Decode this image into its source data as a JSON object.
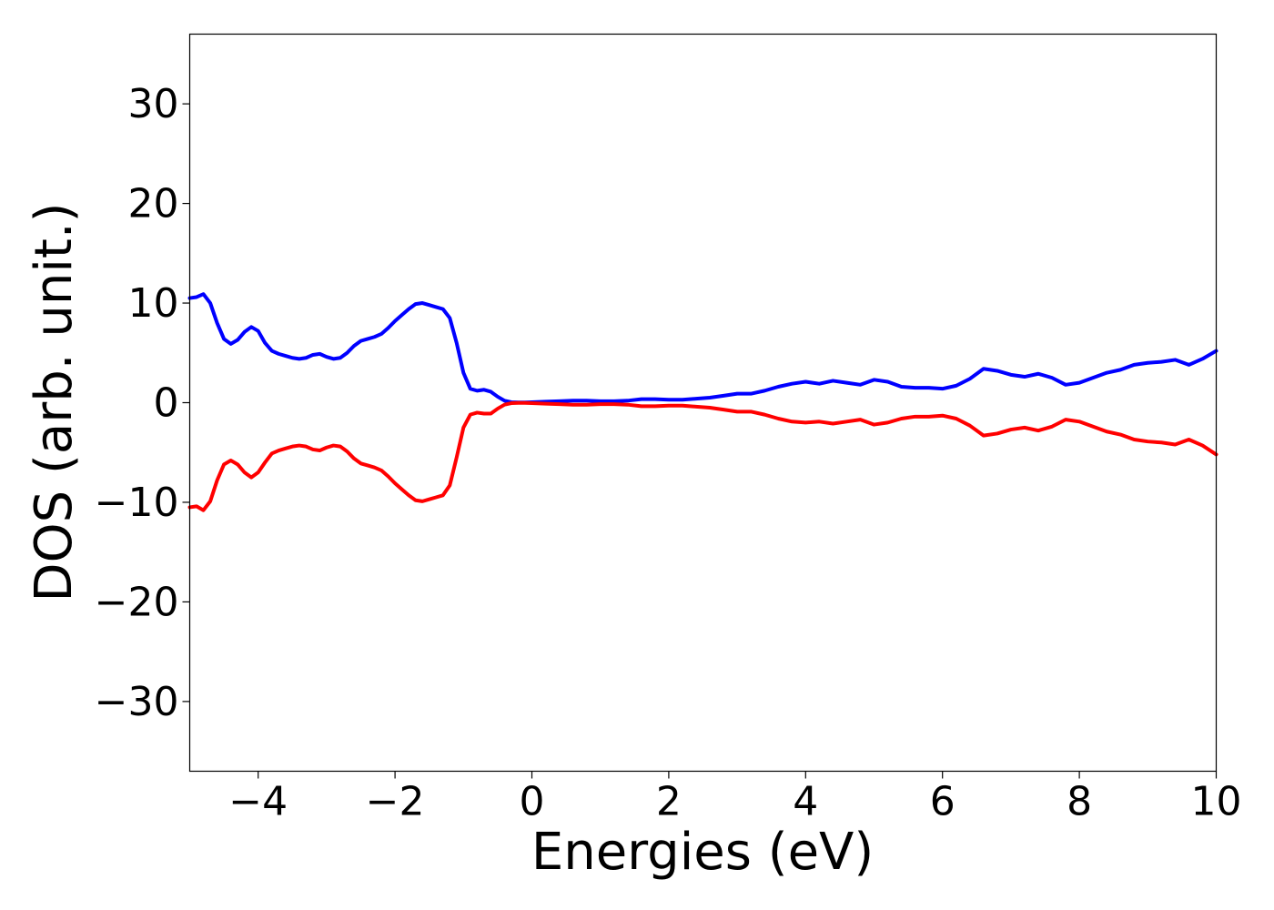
{
  "chart_data": {
    "type": "line",
    "title": "",
    "xlabel": "Energies (eV)",
    "ylabel": "DOS (arb. unit.)",
    "xlim": [
      -5,
      10
    ],
    "ylim": [
      -37,
      37
    ],
    "x_ticks": [
      -4,
      -2,
      0,
      2,
      4,
      6,
      8,
      10
    ],
    "x_tick_labels": [
      "−4",
      "−2",
      "0",
      "2",
      "4",
      "6",
      "8",
      "10"
    ],
    "y_ticks": [
      -30,
      -20,
      -10,
      0,
      10,
      20,
      30
    ],
    "y_tick_labels": [
      "−30",
      "−20",
      "−10",
      "0",
      "10",
      "20",
      "30"
    ],
    "grid": false,
    "legend": "none",
    "series": [
      {
        "color": "#0000ff",
        "x": [
          -5.0,
          -4.9,
          -4.8,
          -4.7,
          -4.6,
          -4.5,
          -4.4,
          -4.3,
          -4.2,
          -4.1,
          -4.0,
          -3.9,
          -3.8,
          -3.7,
          -3.6,
          -3.5,
          -3.4,
          -3.3,
          -3.2,
          -3.1,
          -3.0,
          -2.9,
          -2.8,
          -2.7,
          -2.6,
          -2.5,
          -2.4,
          -2.3,
          -2.2,
          -2.1,
          -2.0,
          -1.9,
          -1.8,
          -1.7,
          -1.6,
          -1.5,
          -1.4,
          -1.3,
          -1.2,
          -1.1,
          -1.0,
          -0.9,
          -0.8,
          -0.7,
          -0.6,
          -0.5,
          -0.4,
          -0.3,
          -0.2,
          -0.1,
          0.0,
          0.2,
          0.4,
          0.6,
          0.8,
          1.0,
          1.2,
          1.4,
          1.6,
          1.8,
          2.0,
          2.2,
          2.4,
          2.6,
          2.8,
          3.0,
          3.2,
          3.4,
          3.6,
          3.8,
          4.0,
          4.2,
          4.4,
          4.6,
          4.8,
          5.0,
          5.2,
          5.4,
          5.6,
          5.8,
          6.0,
          6.2,
          6.4,
          6.6,
          6.8,
          7.0,
          7.2,
          7.4,
          7.6,
          7.8,
          8.0,
          8.2,
          8.4,
          8.6,
          8.8,
          9.0,
          9.2,
          9.4,
          9.6,
          9.8,
          10.0
        ],
        "y": [
          10.5,
          10.6,
          10.9,
          10.0,
          8.0,
          6.4,
          5.9,
          6.3,
          7.1,
          7.6,
          7.2,
          6.0,
          5.2,
          4.9,
          4.7,
          4.5,
          4.4,
          4.5,
          4.8,
          4.9,
          4.6,
          4.4,
          4.5,
          5.0,
          5.7,
          6.2,
          6.4,
          6.6,
          6.9,
          7.5,
          8.2,
          8.8,
          9.4,
          9.9,
          10.0,
          9.8,
          9.6,
          9.4,
          8.5,
          6.0,
          3.0,
          1.4,
          1.2,
          1.3,
          1.1,
          0.6,
          0.2,
          0.05,
          0.02,
          0.02,
          0.05,
          0.1,
          0.15,
          0.2,
          0.2,
          0.15,
          0.15,
          0.2,
          0.35,
          0.35,
          0.3,
          0.3,
          0.4,
          0.5,
          0.7,
          0.9,
          0.9,
          1.2,
          1.6,
          1.9,
          2.1,
          1.9,
          2.2,
          2.0,
          1.8,
          2.3,
          2.1,
          1.6,
          1.5,
          1.5,
          1.4,
          1.7,
          2.4,
          3.4,
          3.2,
          2.8,
          2.6,
          2.9,
          2.5,
          1.8,
          2.0,
          2.5,
          3.0,
          3.3,
          3.8,
          4.0,
          4.1,
          4.3,
          3.8,
          4.4,
          5.2
        ]
      },
      {
        "color": "#ff0000",
        "x": [
          -5.0,
          -4.9,
          -4.8,
          -4.7,
          -4.6,
          -4.5,
          -4.4,
          -4.3,
          -4.2,
          -4.1,
          -4.0,
          -3.9,
          -3.8,
          -3.7,
          -3.6,
          -3.5,
          -3.4,
          -3.3,
          -3.2,
          -3.1,
          -3.0,
          -2.9,
          -2.8,
          -2.7,
          -2.6,
          -2.5,
          -2.4,
          -2.3,
          -2.2,
          -2.1,
          -2.0,
          -1.9,
          -1.8,
          -1.7,
          -1.6,
          -1.5,
          -1.4,
          -1.3,
          -1.2,
          -1.1,
          -1.0,
          -0.9,
          -0.8,
          -0.7,
          -0.6,
          -0.5,
          -0.4,
          -0.3,
          -0.2,
          -0.1,
          0.0,
          0.2,
          0.4,
          0.6,
          0.8,
          1.0,
          1.2,
          1.4,
          1.6,
          1.8,
          2.0,
          2.2,
          2.4,
          2.6,
          2.8,
          3.0,
          3.2,
          3.4,
          3.6,
          3.8,
          4.0,
          4.2,
          4.4,
          4.6,
          4.8,
          5.0,
          5.2,
          5.4,
          5.6,
          5.8,
          6.0,
          6.2,
          6.4,
          6.6,
          6.8,
          7.0,
          7.2,
          7.4,
          7.6,
          7.8,
          8.0,
          8.2,
          8.4,
          8.6,
          8.8,
          9.0,
          9.2,
          9.4,
          9.6,
          9.8,
          10.0
        ],
        "y": [
          -10.5,
          -10.4,
          -10.8,
          -9.9,
          -7.8,
          -6.2,
          -5.8,
          -6.2,
          -7.0,
          -7.5,
          -7.0,
          -6.0,
          -5.1,
          -4.8,
          -4.6,
          -4.4,
          -4.3,
          -4.4,
          -4.7,
          -4.8,
          -4.5,
          -4.3,
          -4.4,
          -4.9,
          -5.6,
          -6.1,
          -6.3,
          -6.5,
          -6.8,
          -7.4,
          -8.1,
          -8.7,
          -9.3,
          -9.8,
          -9.9,
          -9.7,
          -9.5,
          -9.3,
          -8.3,
          -5.5,
          -2.5,
          -1.2,
          -1.0,
          -1.1,
          -1.1,
          -0.6,
          -0.2,
          -0.05,
          -0.02,
          -0.02,
          -0.05,
          -0.1,
          -0.15,
          -0.2,
          -0.2,
          -0.15,
          -0.15,
          -0.2,
          -0.35,
          -0.35,
          -0.3,
          -0.3,
          -0.4,
          -0.5,
          -0.7,
          -0.9,
          -0.9,
          -1.2,
          -1.6,
          -1.9,
          -2.0,
          -1.9,
          -2.1,
          -1.9,
          -1.7,
          -2.2,
          -2.0,
          -1.6,
          -1.4,
          -1.4,
          -1.3,
          -1.6,
          -2.3,
          -3.3,
          -3.1,
          -2.7,
          -2.5,
          -2.8,
          -2.4,
          -1.7,
          -1.9,
          -2.4,
          -2.9,
          -3.2,
          -3.7,
          -3.9,
          -4.0,
          -4.2,
          -3.7,
          -4.3,
          -5.2
        ]
      }
    ]
  }
}
